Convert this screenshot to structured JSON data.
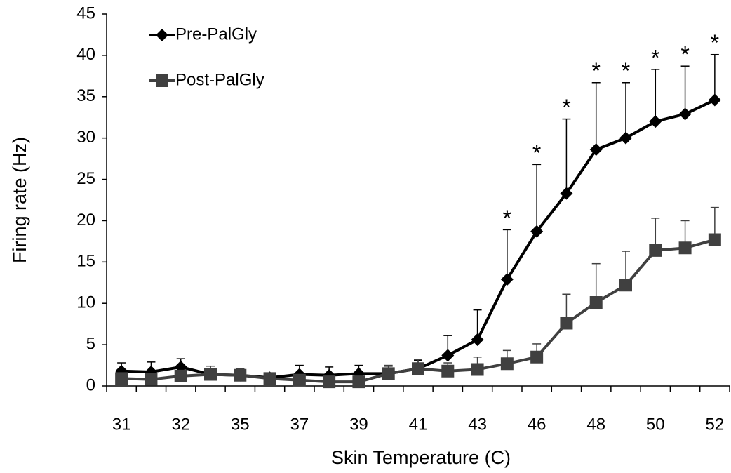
{
  "chart_data": {
    "type": "line",
    "x_label": "Skin Temperature (C)",
    "y_label": "Firing rate (Hz)",
    "categories": [
      "31",
      null,
      "32",
      null,
      "35",
      null,
      "37",
      null,
      "39",
      null,
      "41",
      null,
      "43",
      null,
      "46",
      null,
      "48",
      null,
      "50",
      null,
      "52"
    ],
    "series": [
      {
        "name": "Pre-PalGly",
        "color": "#000000",
        "marker": "diamond",
        "values": [
          1.8,
          1.7,
          2.3,
          1.4,
          1.3,
          1.0,
          1.4,
          1.3,
          1.5,
          1.5,
          2.1,
          3.7,
          5.6,
          12.9,
          18.7,
          23.3,
          28.6,
          30.0,
          32.0,
          32.9,
          34.6
        ],
        "errors": [
          1.0,
          1.2,
          1.0,
          1.0,
          0.8,
          0.5,
          1.1,
          1.0,
          1.0,
          0.9,
          1.0,
          2.4,
          3.6,
          6.0,
          8.1,
          9.0,
          8.1,
          6.7,
          6.3,
          5.8,
          5.5
        ]
      },
      {
        "name": "Post-PalGly",
        "color": "#404040",
        "marker": "square",
        "values": [
          0.9,
          0.8,
          1.2,
          1.4,
          1.3,
          0.9,
          0.7,
          0.5,
          0.5,
          1.5,
          2.1,
          1.8,
          2.0,
          2.7,
          3.5,
          7.6,
          10.1,
          12.2,
          16.4,
          16.7,
          17.7
        ],
        "errors": [
          0.5,
          0.5,
          0.6,
          1.0,
          0.8,
          0.6,
          0.5,
          0.5,
          0.5,
          1.0,
          1.1,
          1.0,
          1.5,
          1.6,
          1.6,
          3.5,
          4.7,
          4.1,
          3.9,
          3.3,
          3.9
        ]
      }
    ],
    "significance": {
      "label": "*",
      "indices": [
        13,
        14,
        15,
        16,
        17,
        18,
        19,
        20
      ]
    },
    "ylim": [
      0,
      45
    ],
    "yticks": [
      0,
      5,
      10,
      15,
      20,
      25,
      30,
      35,
      40,
      45
    ],
    "grid": false,
    "legend": "top-left"
  }
}
